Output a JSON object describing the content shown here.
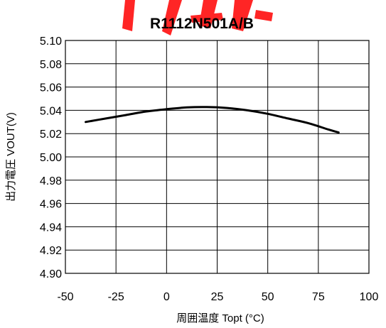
{
  "chart_data": {
    "type": "line",
    "title": "R1112N501A/B",
    "xlabel": "周囲温度 Topt (°C)",
    "ylabel": "出力電圧 VOUT(V)",
    "xlim": [
      -50,
      100
    ],
    "ylim": [
      4.9,
      5.1
    ],
    "x_ticks": [
      "-50",
      "-25",
      "0",
      "25",
      "50",
      "75",
      "100"
    ],
    "y_ticks": [
      "5.10",
      "5.08",
      "5.06",
      "5.04",
      "5.02",
      "5.00",
      "4.98",
      "4.96",
      "4.94",
      "4.92",
      "4.90"
    ],
    "grid": true,
    "series": [
      {
        "x": [
          -40,
          -30,
          -20,
          -10,
          0,
          10,
          20,
          30,
          40,
          50,
          60,
          70,
          80,
          85
        ],
        "values": [
          5.03,
          5.033,
          5.036,
          5.039,
          5.041,
          5.0425,
          5.0428,
          5.042,
          5.04,
          5.037,
          5.033,
          5.029,
          5.0235,
          5.021
        ]
      }
    ]
  }
}
